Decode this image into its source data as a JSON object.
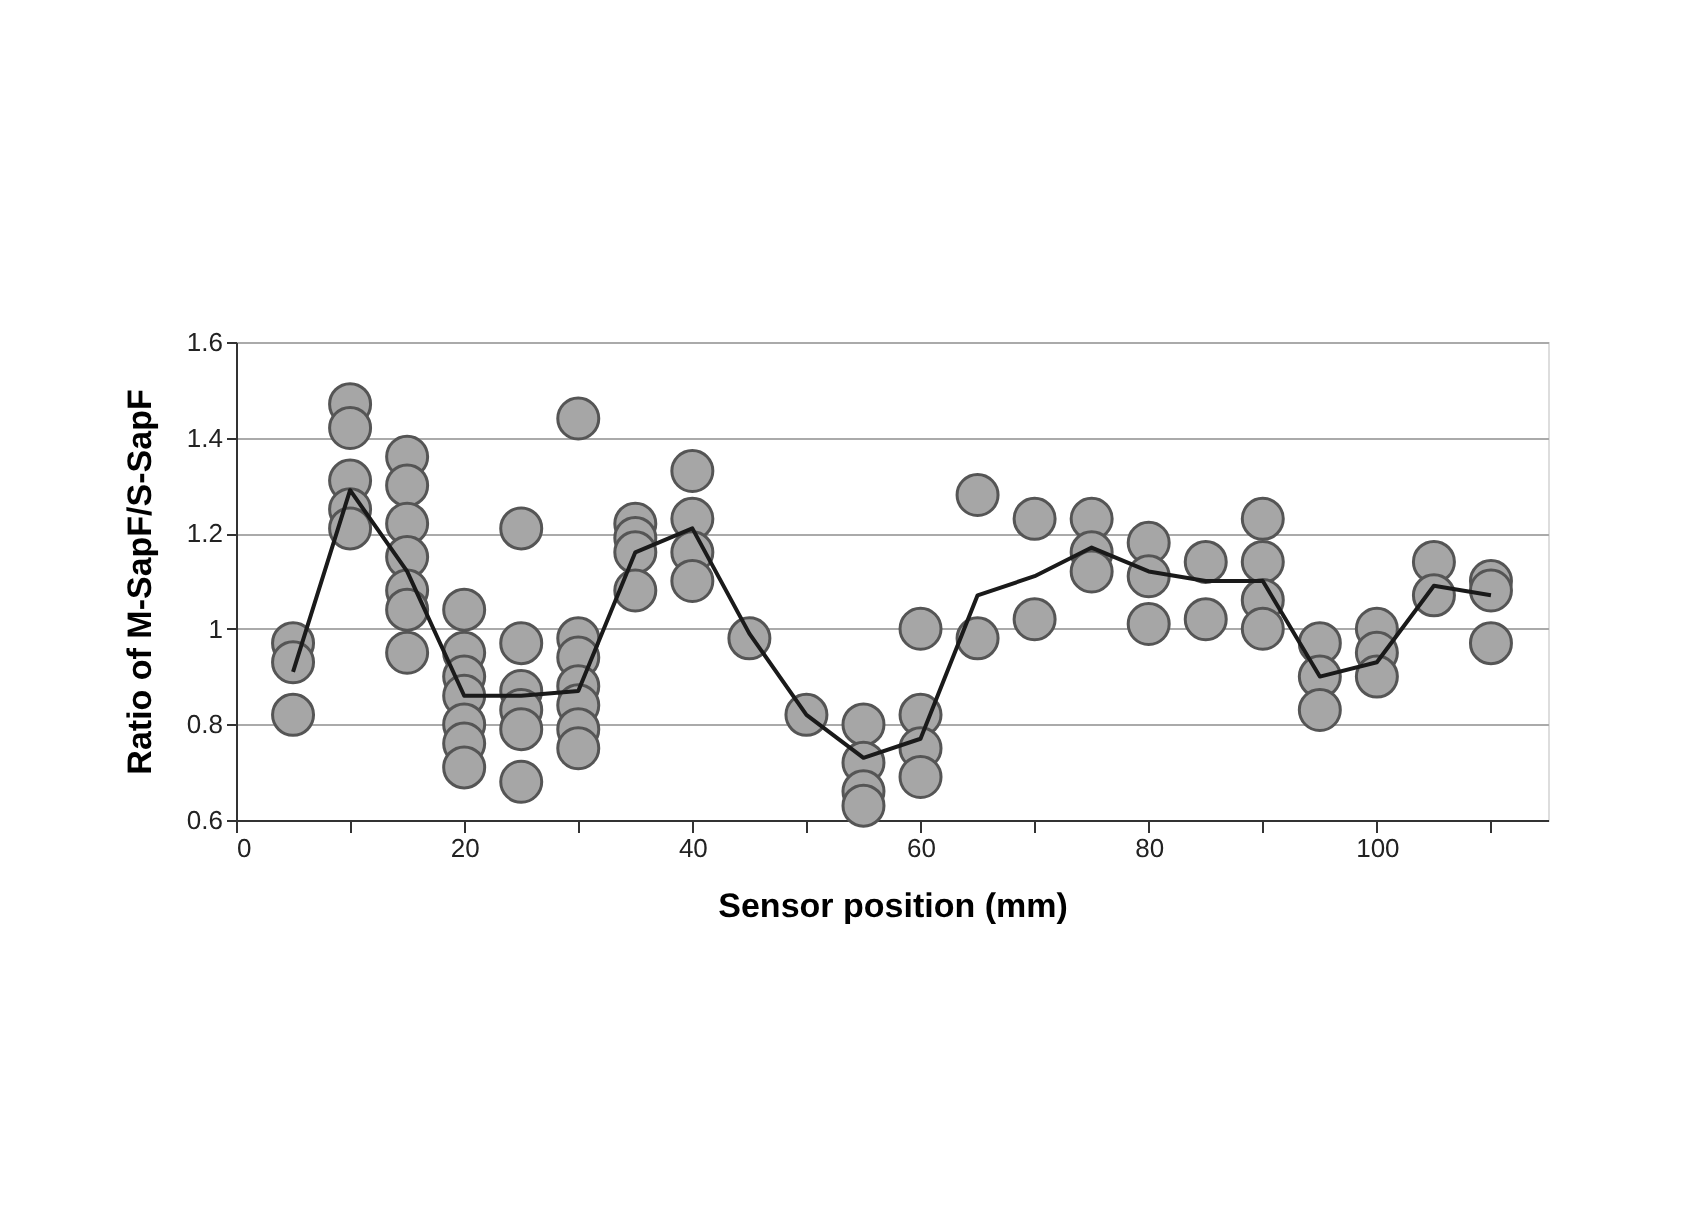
{
  "chart_data": {
    "type": "scatter",
    "xlabel": "Sensor  position  (mm)",
    "ylabel": "Ratio of M-SapF/S-SapF",
    "xlim": [
      0,
      115
    ],
    "ylim": [
      0.6,
      1.6
    ],
    "xticks": [
      0,
      {
        "value": 10,
        "label": null
      },
      20,
      {
        "value": 30,
        "label": null
      },
      40,
      {
        "value": 50,
        "label": null
      },
      60,
      {
        "value": 70,
        "label": null
      },
      80,
      {
        "value": 90,
        "label": null
      },
      100,
      {
        "value": 110,
        "label": null
      }
    ],
    "yticks": [
      0.6,
      0.8,
      1,
      1.2,
      1.4,
      1.6
    ],
    "grid": "y",
    "marker": "circle",
    "series": [
      {
        "color": "#a6a6a6",
        "x": [
          5,
          5,
          5,
          10,
          10,
          10,
          10,
          10,
          15,
          15,
          15,
          15,
          15,
          15,
          15,
          20,
          20,
          20,
          20,
          20,
          20,
          20,
          25,
          25,
          25,
          25,
          25,
          25,
          30,
          30,
          30,
          30,
          30,
          30,
          30,
          35,
          35,
          35,
          35,
          40,
          40,
          40,
          40,
          45,
          50,
          55,
          55,
          55,
          55,
          60,
          60,
          60,
          60,
          65,
          65,
          70,
          70,
          75,
          75,
          75,
          80,
          80,
          80,
          85,
          85,
          90,
          90,
          90,
          90,
          95,
          95,
          95,
          100,
          100,
          100,
          105,
          105,
          110,
          110,
          110
        ],
        "values": [
          0.97,
          0.93,
          0.82,
          1.47,
          1.42,
          1.31,
          1.25,
          1.21,
          1.36,
          1.3,
          1.22,
          1.15,
          1.08,
          1.04,
          0.95,
          1.04,
          0.95,
          0.9,
          0.86,
          0.8,
          0.76,
          0.71,
          0.97,
          0.87,
          0.83,
          0.79,
          0.68,
          1.21,
          1.44,
          0.98,
          0.94,
          0.88,
          0.84,
          0.79,
          0.75,
          1.22,
          1.19,
          1.16,
          1.08,
          1.33,
          1.23,
          1.16,
          1.1,
          0.98,
          0.82,
          0.8,
          0.72,
          0.66,
          0.63,
          1,
          0.82,
          0.75,
          0.69,
          1.28,
          0.98,
          1.23,
          1.02,
          1.23,
          1.16,
          1.12,
          1.18,
          1.11,
          1.01,
          1.14,
          1.02,
          1.23,
          1.14,
          1.06,
          1,
          0.97,
          0.9,
          0.83,
          1,
          0.95,
          0.9,
          1.14,
          1.07,
          1.1,
          1.08,
          0.97
        ]
      },
      {
        "type": "line",
        "color": "#1a1a1a",
        "marker": "none",
        "x": [
          5,
          10,
          15,
          20,
          25,
          30,
          35,
          40,
          45,
          50,
          55,
          60,
          65,
          70,
          75,
          80,
          85,
          90,
          95,
          100,
          105,
          110
        ],
        "values": [
          0.91,
          1.29,
          1.12,
          0.86,
          0.86,
          0.87,
          1.16,
          1.21,
          0.99,
          0.82,
          0.73,
          0.77,
          1.07,
          1.11,
          1.17,
          1.12,
          1.1,
          1.1,
          0.9,
          0.93,
          1.09,
          1.07
        ]
      }
    ]
  }
}
